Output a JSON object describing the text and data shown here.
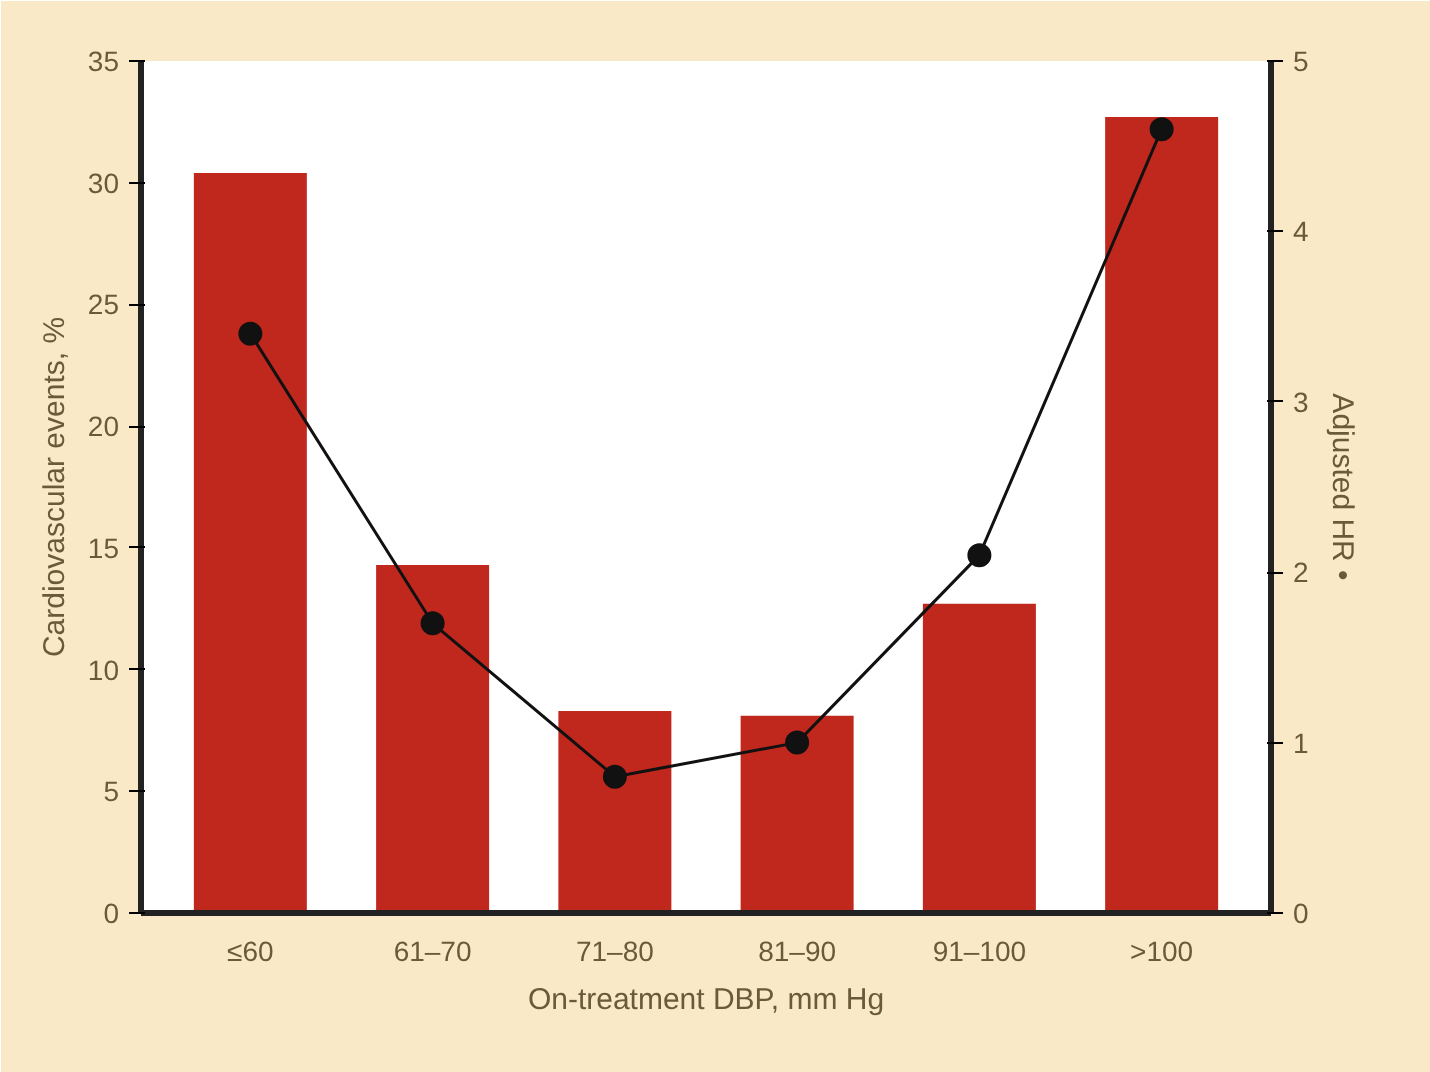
{
  "chart_data": {
    "type": "bar",
    "categories": [
      "≤60",
      "61–70",
      "71–80",
      "81–90",
      "91–100",
      ">100"
    ],
    "xlabel": "On-treatment DBP, mm Hg",
    "ylabel": "Cardiovascular events, %",
    "y2label": "Adjusted HR •",
    "ylim": [
      0,
      35
    ],
    "yticks": [
      0,
      5,
      10,
      15,
      20,
      25,
      30,
      35
    ],
    "y2lim": [
      0,
      5
    ],
    "y2ticks": [
      0,
      1,
      2,
      3,
      4,
      5
    ],
    "series": [
      {
        "color": "#c0281e",
        "values": [
          30.4,
          14.3,
          8.3,
          8.1,
          12.7,
          32.7
        ]
      },
      {
        "type": "line",
        "axis": "y2",
        "color": "#111111",
        "marker": "circle",
        "values": [
          3.4,
          1.7,
          0.8,
          1.0,
          2.1,
          4.6
        ]
      }
    ],
    "grid": false
  }
}
